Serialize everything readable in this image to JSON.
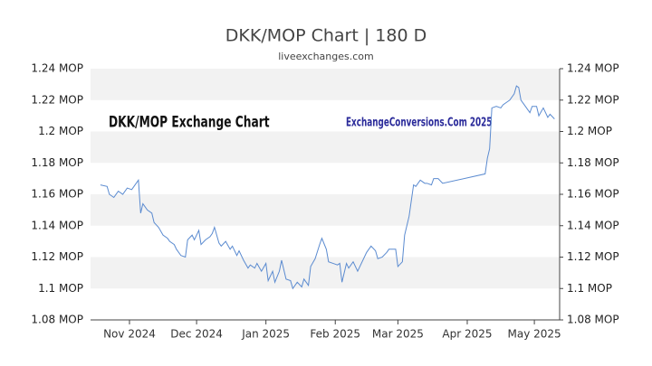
{
  "chart_data": {
    "type": "line",
    "title": "DKK/MOP Chart | 180 D",
    "subtitle": "liveexchanges.com",
    "annotations": [
      "DKK/MOP Exchange Chart",
      "ExchangeConversions.Com 2025"
    ],
    "xlim": [
      -17.4,
      192.3
    ],
    "xticks": [
      {
        "value": 0,
        "label": "Nov 2024"
      },
      {
        "value": 30,
        "label": "Dec 2024"
      },
      {
        "value": 61,
        "label": "Jan 2025"
      },
      {
        "value": 92,
        "label": "Feb 2025"
      },
      {
        "value": 120,
        "label": "Mar 2025"
      },
      {
        "value": 151,
        "label": "Apr 2025"
      },
      {
        "value": 181,
        "label": "May 2025"
      }
    ],
    "ylim": [
      1.08,
      1.24
    ],
    "yticks": [
      {
        "value": 1.08,
        "label": "1.08 MOP"
      },
      {
        "value": 1.1,
        "label": "1.1 MOP"
      },
      {
        "value": 1.12,
        "label": "1.12 MOP"
      },
      {
        "value": 1.14,
        "label": "1.14 MOP"
      },
      {
        "value": 1.16,
        "label": "1.16 MOP"
      },
      {
        "value": 1.18,
        "label": "1.18 MOP"
      },
      {
        "value": 1.2,
        "label": "1.2 MOP"
      },
      {
        "value": 1.22,
        "label": "1.22 MOP"
      },
      {
        "value": 1.24,
        "label": "1.24 MOP"
      }
    ],
    "grid": true,
    "series": [
      {
        "color": "#5b8bd0",
        "x": [
          -13,
          -10,
          -9,
          -7,
          -5,
          -3,
          -1,
          1,
          2,
          4,
          5,
          6,
          8,
          10,
          11,
          13,
          15,
          17,
          18,
          20,
          21,
          23,
          25,
          26,
          28,
          29,
          31,
          32,
          34,
          36,
          37,
          38,
          40,
          41,
          43,
          45,
          46,
          48,
          49,
          51,
          53,
          54,
          56,
          57,
          59,
          61,
          62,
          64,
          65,
          67,
          68,
          70,
          72,
          73,
          75,
          77,
          78,
          80,
          81,
          83,
          85,
          86,
          88,
          89,
          91,
          93,
          94,
          95,
          97,
          98,
          100,
          102,
          103,
          105,
          106,
          108,
          110,
          111,
          113,
          115,
          116,
          118,
          119,
          120,
          122,
          123,
          125,
          127,
          128,
          130,
          132,
          133,
          135,
          136,
          138,
          140,
          159,
          160,
          161,
          162,
          164,
          166,
          167,
          169,
          170,
          172,
          173,
          174,
          175,
          177,
          179,
          180,
          182,
          183,
          185,
          187,
          188,
          190
        ],
        "values": [
          1.166,
          1.165,
          1.16,
          1.158,
          1.162,
          1.16,
          1.164,
          1.163,
          1.165,
          1.169,
          1.148,
          1.154,
          1.15,
          1.148,
          1.142,
          1.139,
          1.134,
          1.132,
          1.13,
          1.128,
          1.125,
          1.121,
          1.12,
          1.131,
          1.134,
          1.131,
          1.137,
          1.128,
          1.131,
          1.133,
          1.135,
          1.139,
          1.129,
          1.127,
          1.13,
          1.125,
          1.127,
          1.121,
          1.124,
          1.118,
          1.113,
          1.115,
          1.113,
          1.116,
          1.111,
          1.116,
          1.105,
          1.111,
          1.104,
          1.111,
          1.118,
          1.106,
          1.105,
          1.1,
          1.104,
          1.101,
          1.106,
          1.102,
          1.114,
          1.119,
          1.128,
          1.132,
          1.125,
          1.117,
          1.116,
          1.115,
          1.116,
          1.104,
          1.116,
          1.113,
          1.117,
          1.111,
          1.114,
          1.12,
          1.123,
          1.127,
          1.124,
          1.119,
          1.12,
          1.123,
          1.125,
          1.125,
          1.125,
          1.114,
          1.117,
          1.134,
          1.146,
          1.166,
          1.165,
          1.169,
          1.167,
          1.167,
          1.166,
          1.17,
          1.17,
          1.167,
          1.173,
          1.183,
          1.189,
          1.215,
          1.216,
          1.215,
          1.217,
          1.219,
          1.22,
          1.224,
          1.229,
          1.228,
          1.22,
          1.216,
          1.212,
          1.216,
          1.216,
          1.21,
          1.215,
          1.209,
          1.211,
          1.208
        ]
      }
    ]
  }
}
